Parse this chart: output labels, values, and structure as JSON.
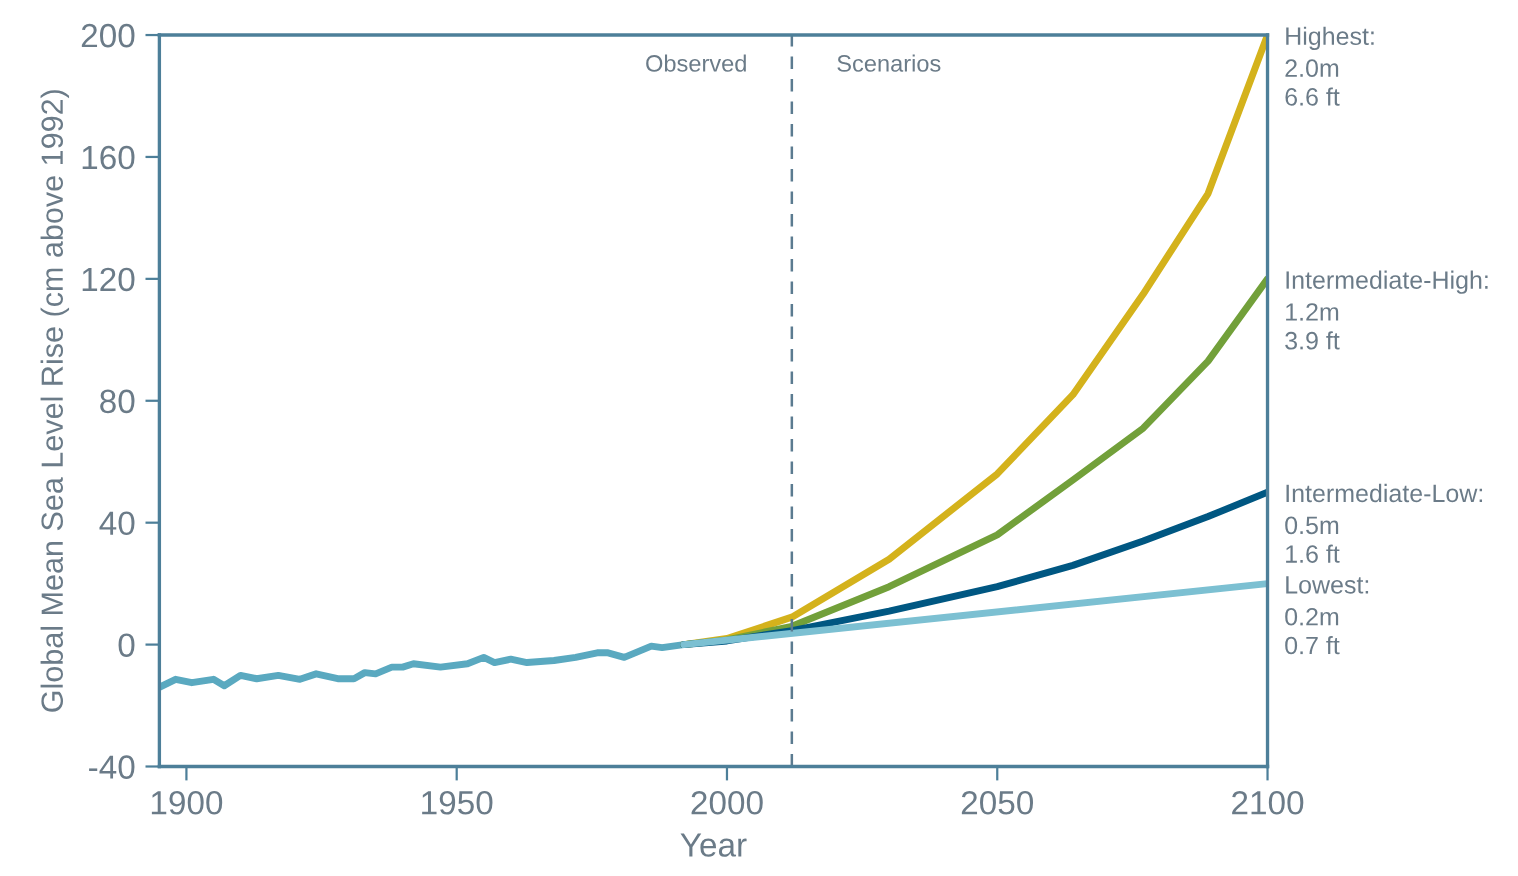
{
  "chart_data": {
    "type": "line",
    "xlabel": "Year",
    "ylabel": "Global Mean Sea Level Rise (cm above 1992)",
    "xlim": [
      1895,
      2100
    ],
    "xticks": [
      1900,
      1950,
      2000,
      2050,
      2100
    ],
    "ylim": [
      -40,
      200
    ],
    "yticks": [
      -40,
      0,
      40,
      80,
      120,
      160,
      200
    ],
    "grid": false,
    "legend": false,
    "series": [
      {
        "color": "#5aa9c0",
        "x": [
          1895,
          1898,
          1901,
          1905,
          1907,
          1910,
          1913,
          1917,
          1921,
          1924,
          1928,
          1931,
          1933,
          1935,
          1938,
          1940,
          1942,
          1947,
          1952,
          1955,
          1957,
          1960,
          1963,
          1968,
          1972,
          1976,
          1978,
          1981,
          1986,
          1988,
          1992
        ],
        "values": [
          -14,
          -11.4,
          -12.5,
          -11.4,
          -13.5,
          -10.1,
          -11.2,
          -10.1,
          -11.4,
          -9.6,
          -11.2,
          -11.2,
          -9.2,
          -9.6,
          -7.4,
          -7.4,
          -6.3,
          -7.4,
          -6.3,
          -4.2,
          -5.9,
          -4.8,
          -5.9,
          -5.2,
          -4.2,
          -2.7,
          -2.7,
          -4.2,
          -0.5,
          -1,
          0
        ]
      },
      {
        "name": "Highest:",
        "color": "#d4b21c",
        "x": [
          1992,
          2000,
          2012,
          2030,
          2050,
          2064,
          2077,
          2089,
          2100
        ],
        "values": [
          0,
          2,
          9,
          28,
          56,
          82,
          115,
          148,
          200
        ]
      },
      {
        "name": "Intermediate-High:",
        "color": "#72a03a",
        "x": [
          1992,
          2000,
          2012,
          2030,
          2050,
          2064,
          2077,
          2089,
          2100
        ],
        "values": [
          0,
          1.5,
          6,
          19,
          36,
          54,
          71,
          93,
          120
        ]
      },
      {
        "name": "Intermediate-Low:",
        "color": "#005782",
        "x": [
          1992,
          2000,
          2012,
          2030,
          2050,
          2064,
          2077,
          2089,
          2100
        ],
        "values": [
          0,
          1.2,
          4.6,
          11,
          19,
          26,
          34,
          42,
          50
        ]
      },
      {
        "name": "Lowest:",
        "color": "#7cc0d2",
        "x": [
          1992,
          2100
        ],
        "values": [
          0,
          20
        ]
      }
    ],
    "ref_lines": [
      {
        "axis": "x",
        "value": 2012,
        "line_style": "dashed",
        "color": "#5b7b90"
      }
    ],
    "annotations": [
      "Observed",
      "Scenarios",
      "2.0m\n6.6 ft",
      "1.2m\n3.9 ft",
      "0.5m\n1.6 ft",
      "0.2m\n0.7 ft"
    ]
  }
}
